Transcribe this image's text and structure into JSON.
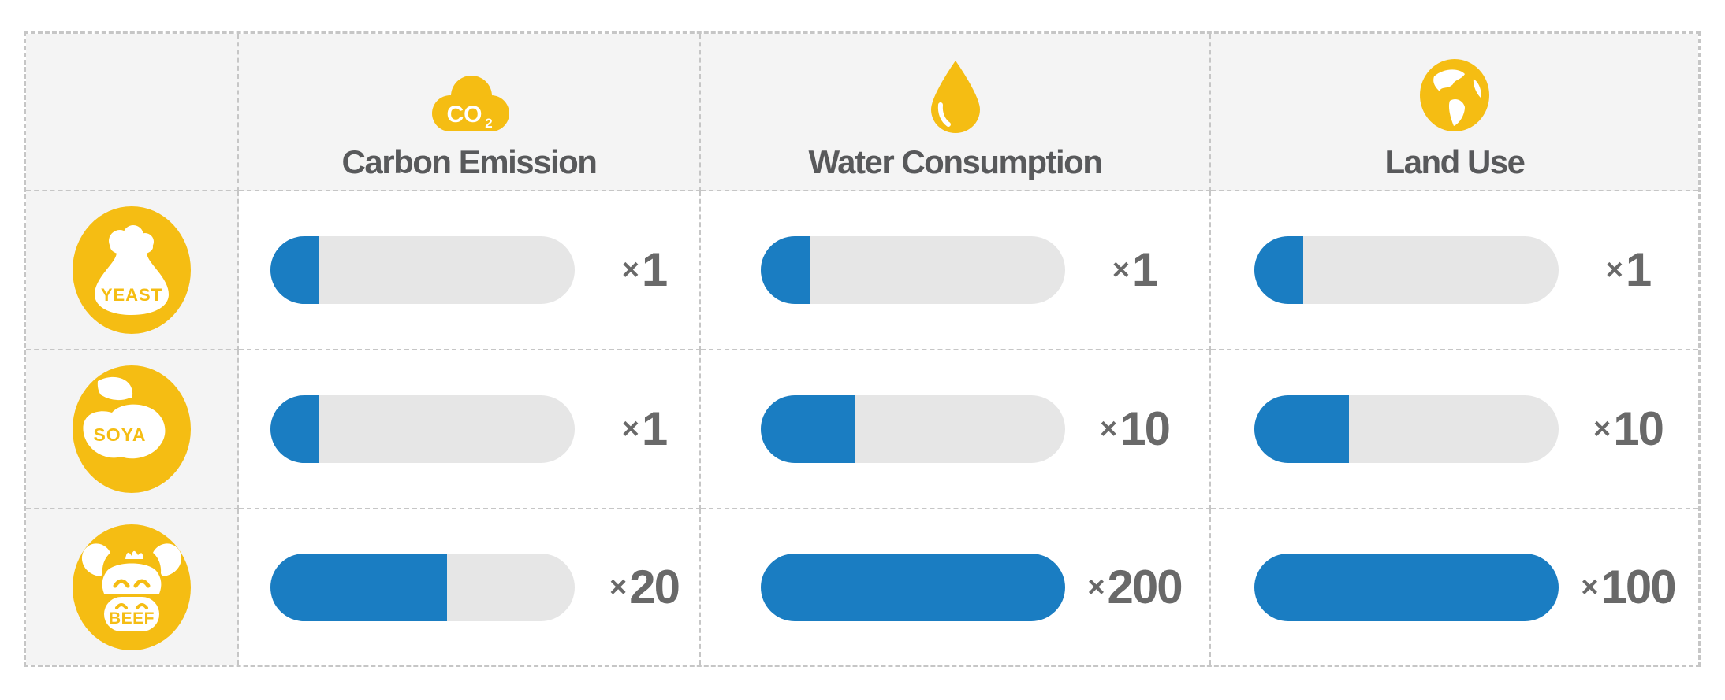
{
  "colors": {
    "yellow": "#F5BD13",
    "blue": "#1A7DC2",
    "track": "#E6E6E6",
    "cellbg": "#F4F4F4",
    "border": "#C6C6C6",
    "headtext": "#58595B",
    "multtext": "#696969",
    "pagebg": "#FFFFFF"
  },
  "icons": {
    "co2_text": "CO",
    "co2_sub": "2"
  },
  "table": {
    "columns": [
      {
        "label": "",
        "icon": ""
      },
      {
        "label": "Carbon Emission",
        "icon": "co2-cloud"
      },
      {
        "label": "Water Consumption",
        "icon": "water-drop"
      },
      {
        "label": "Land Use",
        "icon": "globe"
      }
    ],
    "rows": [
      {
        "label": "YEAST",
        "cells": [
          {
            "sign": "×",
            "value": "1",
            "fill_percent": 16
          },
          {
            "sign": "×",
            "value": "1",
            "fill_percent": 16
          },
          {
            "sign": "×",
            "value": "1",
            "fill_percent": 16
          }
        ]
      },
      {
        "label": "SOYA",
        "cells": [
          {
            "sign": "×",
            "value": "1",
            "fill_percent": 16
          },
          {
            "sign": "×",
            "value": "10",
            "fill_percent": 31
          },
          {
            "sign": "×",
            "value": "10",
            "fill_percent": 31
          }
        ]
      },
      {
        "label": "BEEF",
        "cells": [
          {
            "sign": "×",
            "value": "20",
            "fill_percent": 58
          },
          {
            "sign": "×",
            "value": "200",
            "fill_percent": 100
          },
          {
            "sign": "×",
            "value": "100",
            "fill_percent": 100
          }
        ]
      }
    ]
  },
  "chart_data": {
    "type": "bar",
    "orientation": "horizontal",
    "categories": [
      "YEAST",
      "SOYA",
      "BEEF"
    ],
    "series": [
      {
        "name": "Carbon Emission",
        "values": [
          1,
          1,
          20
        ]
      },
      {
        "name": "Water Consumption",
        "values": [
          1,
          10,
          200
        ]
      },
      {
        "name": "Land Use",
        "values": [
          1,
          10,
          100
        ]
      }
    ],
    "value_format": "relative multiplier (×N)",
    "bar_fill_percent_of_track": [
      [
        16,
        16,
        16
      ],
      [
        16,
        31,
        31
      ],
      [
        58,
        100,
        100
      ]
    ],
    "title": "",
    "legend_position": "none",
    "grid": false
  }
}
